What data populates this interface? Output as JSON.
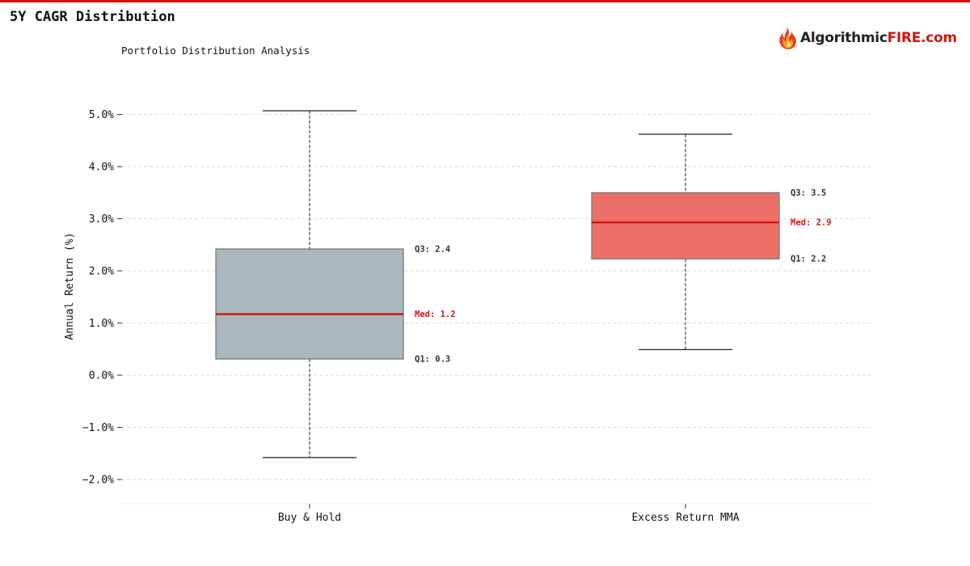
{
  "header": {
    "title": "5Y CAGR Distribution",
    "subtitle": "Portfolio Distribution Analysis"
  },
  "logo": {
    "text_main": "Algorithmic",
    "text_accent": "FIRE.com"
  },
  "colors": {
    "accent": "#d3140f",
    "buy_hold_box": "#aab8be",
    "mma_box": "#ec7068",
    "median_line": "#d3140f",
    "grid": "#dddddd"
  },
  "chart_data": {
    "type": "box",
    "title": "",
    "ylabel": "Annual Return (%)",
    "xlabel": "",
    "ylim": [
      -2.45,
      5.65
    ],
    "yticks": [
      5.0,
      4.0,
      3.0,
      2.0,
      1.0,
      0.0,
      -1.0,
      -2.0
    ],
    "ytick_labels": [
      "5.0%",
      "4.0%",
      "3.0%",
      "2.0%",
      "1.0%",
      "0.0%",
      "−1.0%",
      "−2.0%"
    ],
    "grid": true,
    "categories": [
      "Buy & Hold",
      "Excess Return MMA"
    ],
    "series": [
      {
        "category": "Buy & Hold",
        "whisker_low": -1.58,
        "q1": 0.31,
        "median": 1.17,
        "q3": 2.42,
        "whisker_high": 5.07,
        "color": "#aab8be",
        "labels": {
          "q3": "Q3: 2.4",
          "median": "Med: 1.2",
          "q1": "Q1: 0.3"
        }
      },
      {
        "category": "Excess Return MMA",
        "whisker_low": 0.49,
        "q1": 2.23,
        "median": 2.93,
        "q3": 3.5,
        "whisker_high": 4.62,
        "color": "#ec7068",
        "labels": {
          "q3": "Q3: 3.5",
          "median": "Med: 2.9",
          "q1": "Q1: 2.2"
        }
      }
    ]
  }
}
